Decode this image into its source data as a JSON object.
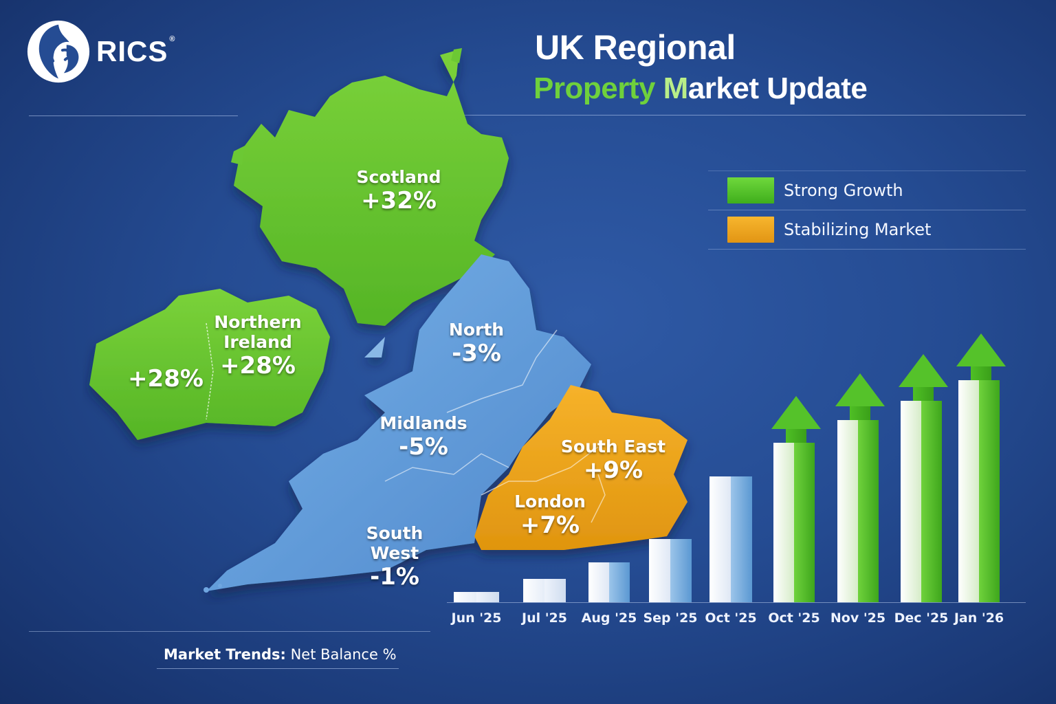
{
  "brand": {
    "name": "RICS",
    "registered": "®"
  },
  "title": {
    "line1": "UK Regional",
    "line2_part1": "Property ",
    "line2_part2": "M",
    "line2_part3": "arket Update"
  },
  "legend": [
    {
      "label": "Strong Growth",
      "color": "#52c226"
    },
    {
      "label": "Stabilizing Market",
      "color": "#f0a51c"
    }
  ],
  "regions": [
    {
      "name": "Scotland",
      "value": "+32%",
      "category": "Strong Growth"
    },
    {
      "name": "Northern Ireland",
      "name_line1": "Northern",
      "name_line2": "Ireland",
      "value": "+28%",
      "category": "Strong Growth"
    },
    {
      "name": "",
      "value": "+28%",
      "category": "Strong Growth"
    },
    {
      "name": "North",
      "value": "-3%",
      "category": "Decline"
    },
    {
      "name": "Midlands",
      "value": "-5%",
      "category": "Decline"
    },
    {
      "name": "South West",
      "value": "-1%",
      "category": "Decline"
    },
    {
      "name": "South East",
      "value": "+9%",
      "category": "Stabilizing Market"
    },
    {
      "name": "London",
      "value": "+7%",
      "category": "Stabilizing Market"
    }
  ],
  "colors": {
    "background": "#254c93",
    "growth": "#52c226",
    "stabilizing": "#f0a51c",
    "decline": "#5f9ddc",
    "text": "#ffffff"
  },
  "footer": {
    "label_bold": "Market Trends:",
    "label_rest": " Net Balance %"
  },
  "chart_data": {
    "type": "bar",
    "title": "Market Trends: Net Balance %",
    "categories": [
      "Jun '25",
      "Jul '25",
      "Aug '25",
      "Sep '25",
      "Oct '25",
      "Oct '25",
      "Nov '25",
      "Dec '25",
      "Jan '26"
    ],
    "values": [
      5,
      11,
      19,
      30,
      60,
      76,
      87,
      96,
      106
    ],
    "bar_styles": [
      "white",
      "white",
      "white-blue",
      "white-blue",
      "white-blue",
      "green-arrow",
      "green-arrow",
      "green-arrow",
      "green-arrow"
    ],
    "xlabel": "",
    "ylabel": "",
    "ylim": [
      0,
      130
    ],
    "grid": false,
    "legend_position": "none",
    "note": "Relative bar heights estimated from pixels; no y-axis values shown"
  }
}
